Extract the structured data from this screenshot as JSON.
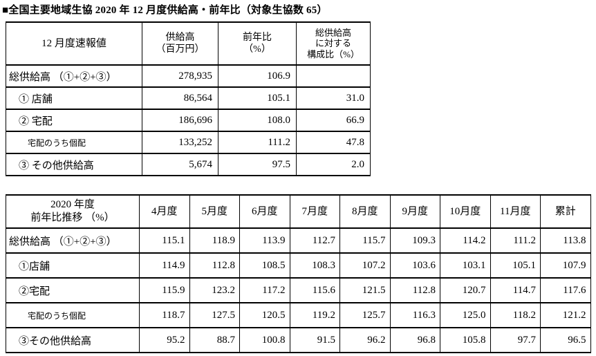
{
  "title": "■全国主要地域生協 2020 年 12 月度供給高・前年比（対象生協数 65）",
  "colors": {
    "text": "#000000",
    "background": "#ffffff",
    "border": "#000000"
  },
  "t1": {
    "h": {
      "label": "12 月度速報値",
      "c1": "供給高\n（百万円）",
      "c2": "前年比\n（%）",
      "c3": "総供給高\nに対する\n構成比（%）"
    },
    "rows": [
      {
        "label": "総供給高 （①+②+③）",
        "v": [
          "278,935",
          "106.9",
          ""
        ]
      },
      {
        "label": "① 店舗",
        "v": [
          "86,564",
          "105.1",
          "31.0"
        ]
      },
      {
        "label": "② 宅配",
        "v": [
          "186,696",
          "108.0",
          "66.9"
        ]
      },
      {
        "label": "宅配のうち個配",
        "v": [
          "133,252",
          "111.2",
          "47.8"
        ]
      },
      {
        "label": "③ その他供給高",
        "v": [
          "5,674",
          "97.5",
          "2.0"
        ]
      }
    ]
  },
  "t2": {
    "h": {
      "label": "2020 年度\n前年比推移 （%）",
      "months": [
        "4月度",
        "5月度",
        "6月度",
        "7月度",
        "8月度",
        "9月度",
        "10月度",
        "11月度",
        "累計"
      ]
    },
    "rows": [
      {
        "label": "総供給高 （①+②+③）",
        "v": [
          "115.1",
          "118.9",
          "113.9",
          "112.7",
          "115.7",
          "109.3",
          "114.2",
          "111.2",
          "113.8"
        ]
      },
      {
        "label": "①店舗",
        "v": [
          "114.9",
          "112.8",
          "108.5",
          "108.3",
          "107.2",
          "103.6",
          "103.1",
          "105.1",
          "107.9"
        ]
      },
      {
        "label": "②宅配",
        "v": [
          "115.9",
          "123.2",
          "117.2",
          "115.6",
          "121.5",
          "112.8",
          "120.7",
          "114.7",
          "117.6"
        ]
      },
      {
        "label": "宅配のうち個配",
        "v": [
          "118.7",
          "127.5",
          "120.5",
          "119.2",
          "125.7",
          "116.3",
          "125.0",
          "118.2",
          "121.2"
        ]
      },
      {
        "label": "③その他供給高",
        "v": [
          "95.2",
          "88.7",
          "100.8",
          "91.5",
          "96.2",
          "96.8",
          "105.8",
          "97.7",
          "96.5"
        ]
      }
    ]
  }
}
